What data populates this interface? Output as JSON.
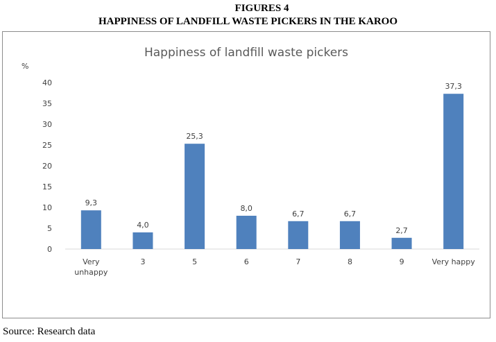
{
  "figure": {
    "number": "FIGURES 4",
    "heading": "HAPPINESS OF LANDFILL WASTE PICKERS IN THE KAROO"
  },
  "source_note": "Source: Research data",
  "chart_data": {
    "type": "bar",
    "title": "Happiness of landfill waste pickers",
    "ylabel": "%",
    "xlabel": "",
    "categories": [
      [
        "Very",
        "unhappy"
      ],
      [
        "3"
      ],
      [
        "5"
      ],
      [
        "6"
      ],
      [
        "7"
      ],
      [
        "8"
      ],
      [
        "9"
      ],
      [
        "Very happy"
      ]
    ],
    "values": [
      9.3,
      4.0,
      25.3,
      8.0,
      6.7,
      6.7,
      2.7,
      37.3
    ],
    "value_labels": [
      "9,3",
      "4,0",
      "25,3",
      "8,0",
      "6,7",
      "6,7",
      "2,7",
      "37,3"
    ],
    "ylim": [
      0,
      40
    ],
    "yticks": [
      0,
      5,
      10,
      15,
      20,
      25,
      30,
      35,
      40
    ],
    "grid": false,
    "legend": "none",
    "bar_color": "#4f81bd",
    "axis_color": "#d9d9d9",
    "text_color": "#404040",
    "title_color": "#595959"
  }
}
